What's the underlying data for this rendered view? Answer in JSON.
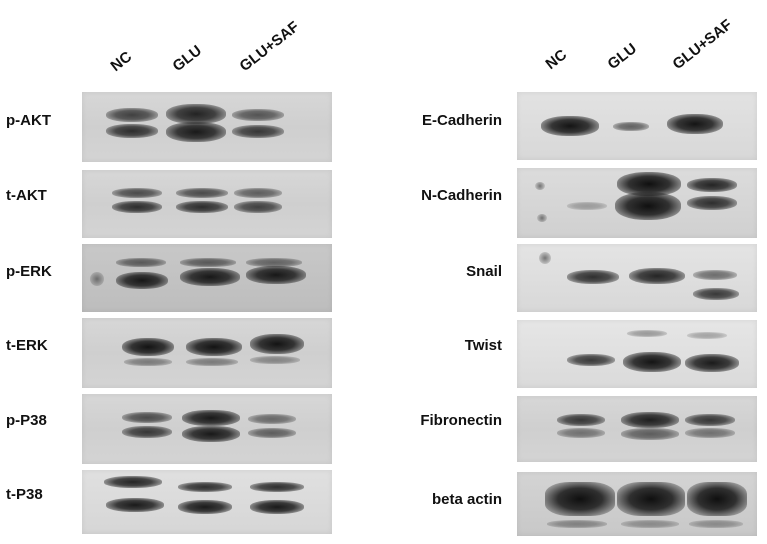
{
  "left_panel": {
    "lanes": [
      "NC",
      "GLU",
      "GLU+SAF"
    ],
    "rows": [
      "p-AKT",
      "t-AKT",
      "p-ERK",
      "t-ERK",
      "p-P38",
      "t-P38"
    ]
  },
  "right_panel": {
    "lanes": [
      "NC",
      "GLU",
      "GLU+SAF"
    ],
    "rows": [
      "E-Cadherin",
      "N-Cadherin",
      "Snail",
      "Twist",
      "Fibronectin",
      "beta actin"
    ]
  },
  "colors": {
    "membrane": "#d2d2d2",
    "band": "#0a0a0a",
    "text": "#111111"
  }
}
